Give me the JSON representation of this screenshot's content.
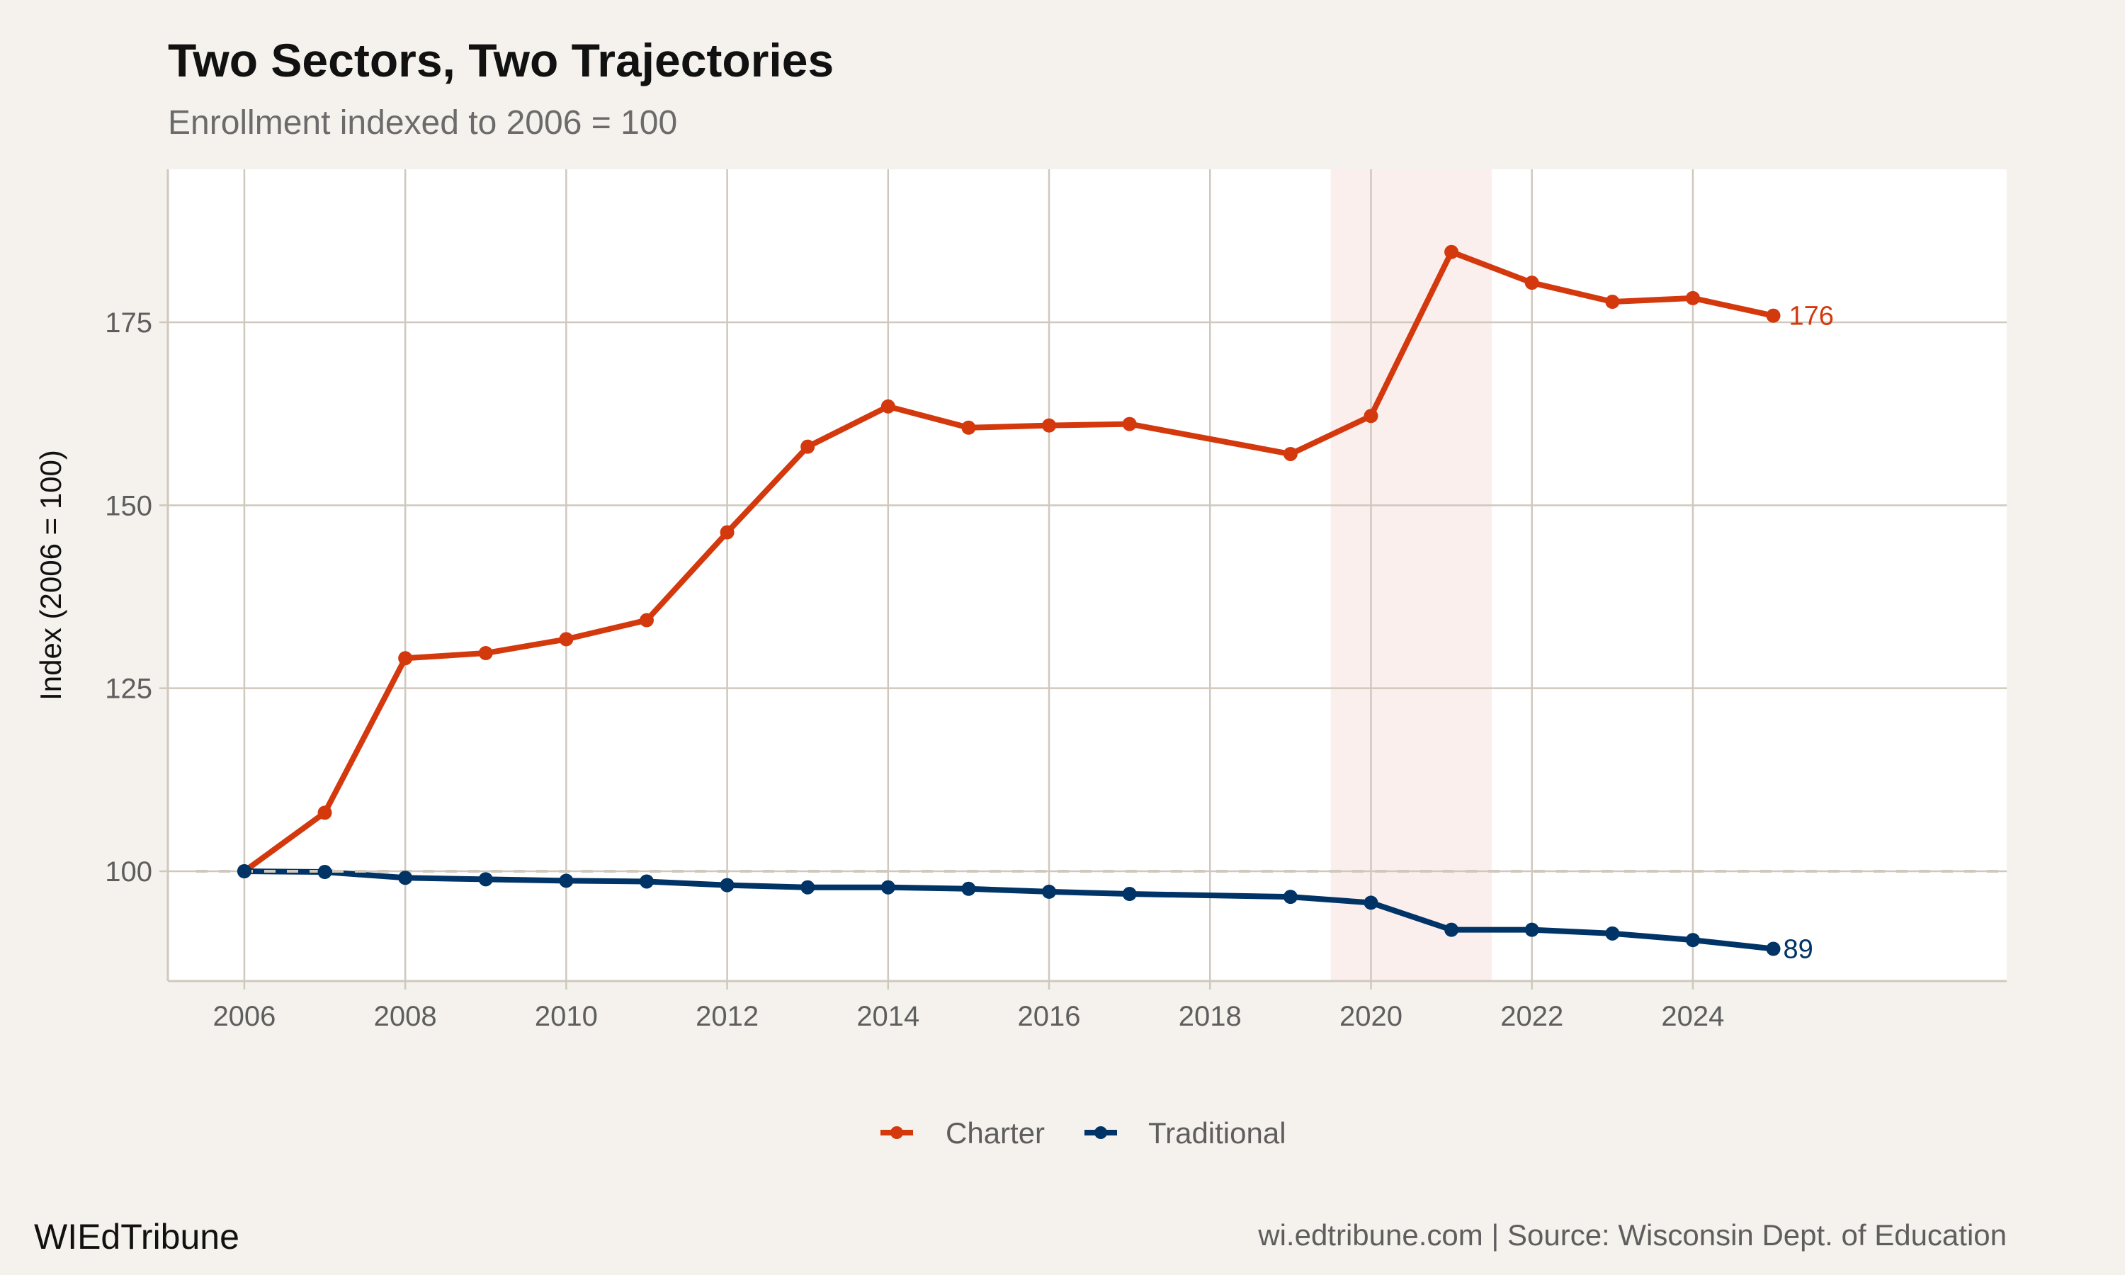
{
  "chart_data": {
    "type": "line",
    "title": "Two Sectors, Two Trajectories",
    "subtitle": "Enrollment indexed to 2006 = 100",
    "xlabel": "",
    "ylabel": "Index (2006 = 100)",
    "xlim": [
      2005.05,
      2027.9
    ],
    "ylim": [
      85,
      195.9
    ],
    "x_ticks": [
      2006,
      2008,
      2010,
      2012,
      2014,
      2016,
      2018,
      2020,
      2022,
      2024
    ],
    "y_ticks": [
      100,
      125,
      150,
      175
    ],
    "grid": true,
    "reference_line": {
      "y": 100,
      "style": "dashed",
      "color": "#cfc8bd"
    },
    "shaded_region": {
      "x": [
        2019.5,
        2021.5
      ],
      "color": "#fbefed"
    },
    "legend_position": "bottom",
    "series": [
      {
        "name": "Charter",
        "color": "#d4380d",
        "end_label": "176",
        "x": [
          2006,
          2007,
          2008,
          2009,
          2010,
          2011,
          2012,
          2013,
          2014,
          2015,
          2016,
          2017,
          2019,
          2020,
          2021,
          2022,
          2023,
          2024,
          2025
        ],
        "values": [
          100,
          108,
          129.1,
          129.8,
          131.7,
          134.3,
          146.3,
          158.0,
          163.5,
          160.6,
          160.9,
          161.1,
          157.0,
          162.2,
          184.6,
          180.4,
          177.8,
          178.3,
          175.9
        ]
      },
      {
        "name": "Traditional",
        "color": "#003366",
        "end_label": "89",
        "x": [
          2006,
          2007,
          2008,
          2009,
          2010,
          2011,
          2012,
          2013,
          2014,
          2015,
          2016,
          2017,
          2019,
          2020,
          2021,
          2022,
          2023,
          2024,
          2025
        ],
        "values": [
          100,
          99.9,
          99.1,
          98.9,
          98.7,
          98.6,
          98.1,
          97.8,
          97.8,
          97.6,
          97.2,
          96.9,
          96.5,
          95.7,
          92.0,
          92.0,
          91.5,
          90.6,
          89.4
        ]
      }
    ]
  },
  "footer": {
    "brand": "WIEdTribune",
    "source": "wi.edtribune.com | Source: Wisconsin Dept. of Education"
  },
  "colors": {
    "background": "#f5f1ec",
    "panel": "#ffffff",
    "grid": "#cfc8bd"
  }
}
